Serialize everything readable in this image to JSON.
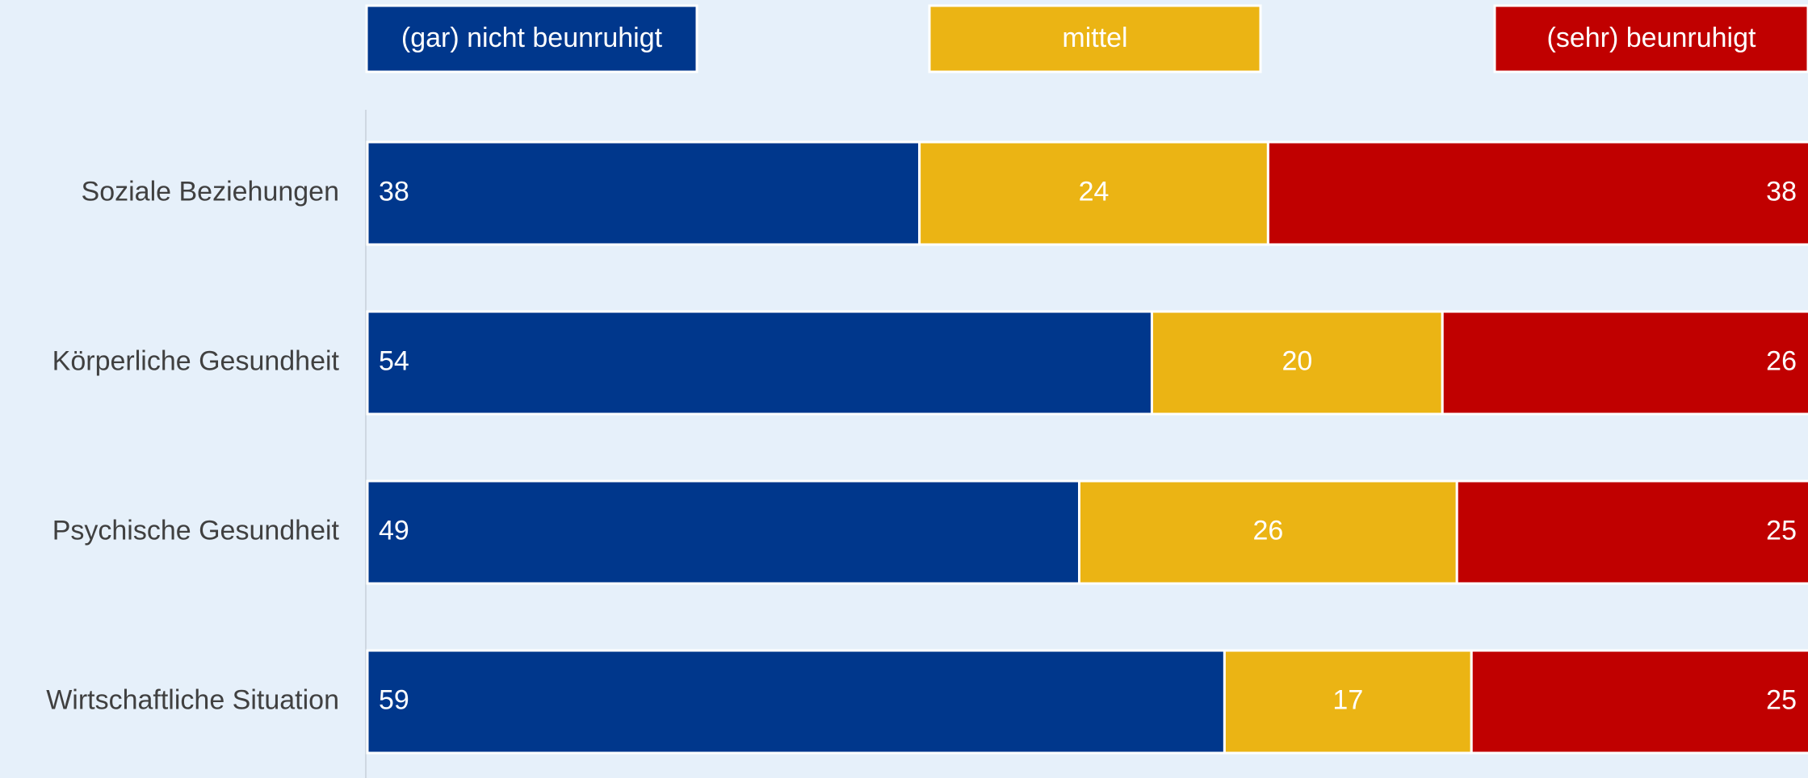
{
  "chart_data": {
    "type": "stacked_barh",
    "categories": [
      "Soziale Beziehungen",
      "Körperliche Gesundheit",
      "Psychische Gesundheit",
      "Wirtschaftliche Situation"
    ],
    "series": [
      {
        "name": "(gar) nicht beunruhigt",
        "color": "#00378c",
        "values": [
          38,
          54,
          49,
          59
        ]
      },
      {
        "name": "mittel",
        "color": "#ebb414",
        "values": [
          24,
          20,
          26,
          17
        ]
      },
      {
        "name": "(sehr) beunruhigt",
        "color": "#c00000",
        "values": [
          38,
          26,
          25,
          25
        ]
      }
    ],
    "xlim": [
      0,
      100
    ],
    "legend": "top"
  }
}
